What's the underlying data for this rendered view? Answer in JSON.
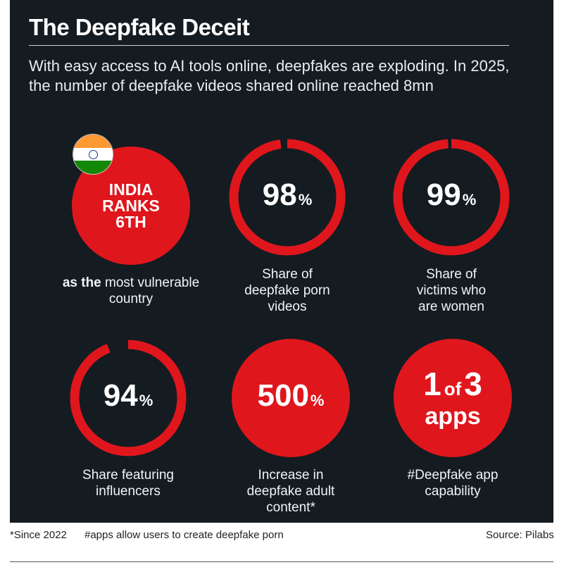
{
  "title": "The Deepfake Deceit",
  "intro": "With easy access to AI tools online, deepfakes are exploding. In 2025, the number of deepfake videos shared online reached 8mn",
  "colors": {
    "background": "#141c21",
    "accent": "#e0161d",
    "text": "#ffffff"
  },
  "stats": [
    {
      "type": "filled",
      "lines": [
        "INDIA",
        "RANKS",
        "6TH"
      ],
      "caption_bold": "as the",
      "caption": " most vulnerable country",
      "icon": "india-flag-icon"
    },
    {
      "type": "ring",
      "value": "98",
      "unit": "%",
      "ring_fraction": 0.98,
      "caption": "Share of deepfake porn videos"
    },
    {
      "type": "ring",
      "value": "99",
      "unit": "%",
      "ring_fraction": 0.99,
      "caption": "Share of victims who are women"
    },
    {
      "type": "ring",
      "value": "94",
      "unit": "%",
      "ring_fraction": 0.94,
      "caption": "Share featuring influencers"
    },
    {
      "type": "filled",
      "value": "500",
      "unit": "%",
      "caption": "Increase in deepfake adult content*"
    },
    {
      "type": "filled",
      "num1": "1",
      "of": "of",
      "num2": "3",
      "apps": "apps",
      "caption": "#Deepfake app capability"
    }
  ],
  "footer": {
    "note1": "*Since 2022",
    "note2": "#apps allow users to create deepfake porn",
    "source": "Source: Pilabs"
  }
}
